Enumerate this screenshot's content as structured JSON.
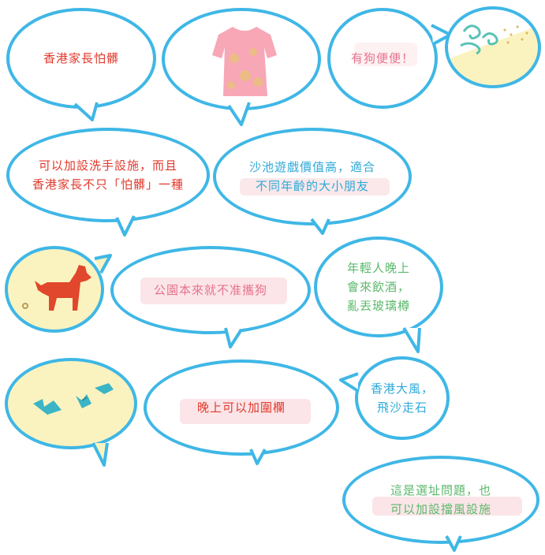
{
  "colors": {
    "outline": "#3fb7e6",
    "red_text": "#e1392c",
    "blue_text": "#2ea8d9",
    "green_text": "#5bb86b",
    "pink_text": "#e7728c",
    "sand": "#fbf3bf",
    "dog": "#e0472c",
    "glass": "#3bb5c6",
    "shirt": "#f7a7b6"
  },
  "bubbles": {
    "parents_fear": {
      "text": "香港家長怕髒"
    },
    "dress": {
      "icon": "dress-icon"
    },
    "dog_poop": {
      "text": "有狗便便！"
    },
    "wind_sand": {
      "icon": "wind-swirl-icon"
    },
    "washing": {
      "line1": "可以加設洗手設施，而且",
      "line2": "香港家長不只「怕髒」一種"
    },
    "play_value": {
      "line1": "沙池遊戲價值高，適合",
      "line2": "不同年齡的大小朋友"
    },
    "dog_scene": {
      "icon": "dog-icon"
    },
    "no_dogs": {
      "text": "公園本來就不准攜狗"
    },
    "drinking": {
      "line1": "年輕人晚上",
      "line2": "會來飲酒，",
      "line3": "亂丟玻璃樽"
    },
    "broken_glass": {
      "icon": "broken-glass-icon"
    },
    "fence": {
      "text": "晚上可以加圍欄"
    },
    "strong_wind": {
      "line1": "香港大風，",
      "line2": "飛沙走石"
    },
    "site_choice": {
      "line1": "這是選址問題，也",
      "line2": "可以加設擋風設施"
    }
  }
}
